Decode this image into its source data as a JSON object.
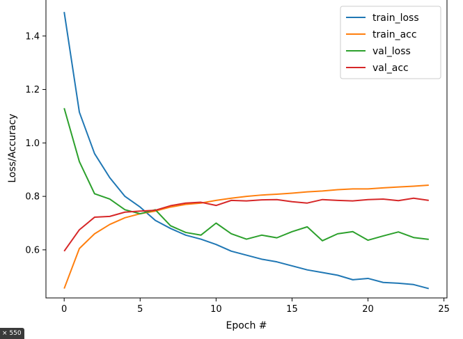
{
  "badge_text": "× 550",
  "chart_data": {
    "type": "line",
    "title": "",
    "xlabel": "Epoch #",
    "ylabel": "Loss/Accuracy",
    "xlim": [
      -1.2,
      25.2
    ],
    "ylim": [
      0.42,
      1.54
    ],
    "xticks": [
      0,
      5,
      10,
      15,
      20,
      25
    ],
    "yticks": [
      0.6,
      0.8,
      1.0,
      1.2,
      1.4
    ],
    "grid": false,
    "legend_position": "top-right",
    "x": [
      0,
      1,
      2,
      3,
      4,
      5,
      6,
      7,
      8,
      9,
      10,
      11,
      12,
      13,
      14,
      15,
      16,
      17,
      18,
      19,
      20,
      21,
      22,
      23,
      24
    ],
    "series": [
      {
        "name": "train_loss",
        "color": "#1f77b4",
        "values": [
          1.49,
          1.115,
          0.96,
          0.87,
          0.8,
          0.76,
          0.71,
          0.68,
          0.655,
          0.64,
          0.62,
          0.595,
          0.58,
          0.565,
          0.555,
          0.54,
          0.525,
          0.515,
          0.505,
          0.488,
          0.493,
          0.478,
          0.475,
          0.47,
          0.455
        ]
      },
      {
        "name": "train_acc",
        "color": "#ff7f0e",
        "values": [
          0.455,
          0.605,
          0.66,
          0.695,
          0.72,
          0.735,
          0.745,
          0.76,
          0.77,
          0.775,
          0.785,
          0.793,
          0.8,
          0.805,
          0.808,
          0.812,
          0.817,
          0.82,
          0.825,
          0.828,
          0.828,
          0.832,
          0.835,
          0.838,
          0.842
        ]
      },
      {
        "name": "val_loss",
        "color": "#2ca02c",
        "values": [
          1.13,
          0.93,
          0.81,
          0.79,
          0.75,
          0.735,
          0.75,
          0.69,
          0.665,
          0.655,
          0.7,
          0.66,
          0.64,
          0.655,
          0.645,
          0.668,
          0.686,
          0.634,
          0.66,
          0.668,
          0.636,
          0.652,
          0.667,
          0.646,
          0.639
        ]
      },
      {
        "name": "val_acc",
        "color": "#d62728",
        "values": [
          0.595,
          0.675,
          0.722,
          0.725,
          0.741,
          0.745,
          0.748,
          0.765,
          0.775,
          0.778,
          0.766,
          0.785,
          0.783,
          0.787,
          0.788,
          0.78,
          0.775,
          0.788,
          0.785,
          0.783,
          0.788,
          0.79,
          0.784,
          0.793,
          0.785
        ]
      }
    ]
  }
}
